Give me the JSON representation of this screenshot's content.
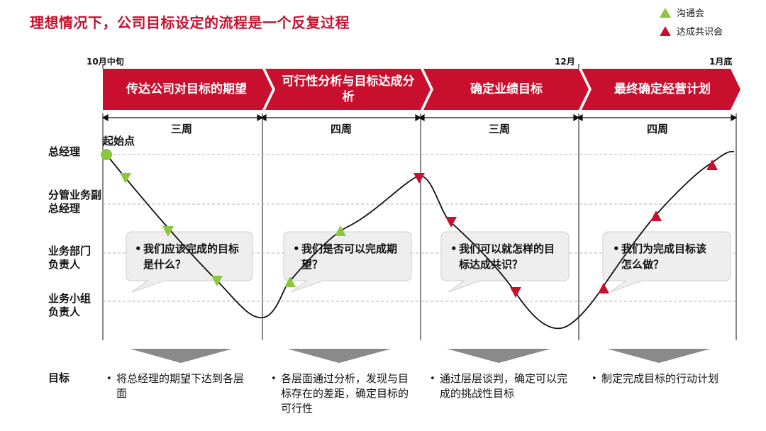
{
  "title": "理想情况下，公司目标设定的流程是一个反复过程",
  "legend": [
    {
      "label": "沟通会",
      "shape": "up-triangle",
      "color": "#8cc63f"
    },
    {
      "label": "达成共识会",
      "shape": "up-triangle",
      "color": "#c8102e"
    }
  ],
  "timeline": {
    "start": "10月中旬",
    "mid": "12月",
    "end": "1月底"
  },
  "stages": [
    {
      "label": "传达公司对目标的期望",
      "duration": "三周",
      "question": "我们应该完成的目标是什么？",
      "goal": "将总经理的期望下达到各层面"
    },
    {
      "label": "可行性分析与目标达成分析",
      "duration": "四周",
      "question": "我们是否可以完成期望？",
      "goal": "各层面通过分析，发现与目标存在的差距，确定目标的可行性"
    },
    {
      "label": "确定业绩目标",
      "duration": "三周",
      "question": "我们可以就怎样的目标达成共识？",
      "goal": "通过层层谈判，确定可以完成的挑战性目标"
    },
    {
      "label": "最终确定经营计划",
      "duration": "四周",
      "question": "我们为完成目标该怎么做？",
      "goal": "制定完成目标的行动计划"
    }
  ],
  "roles": [
    "总经理",
    "分管业务副总经理",
    "业务部门负责人",
    "业务小组负责人"
  ],
  "start_point": "起始点",
  "goal_heading": "目标",
  "colors": {
    "brand_red": "#c8102e",
    "communication_green": "#8cc63f",
    "bubble_gray": "#eeeeee",
    "arrow_gray": "#8a8a8a"
  }
}
